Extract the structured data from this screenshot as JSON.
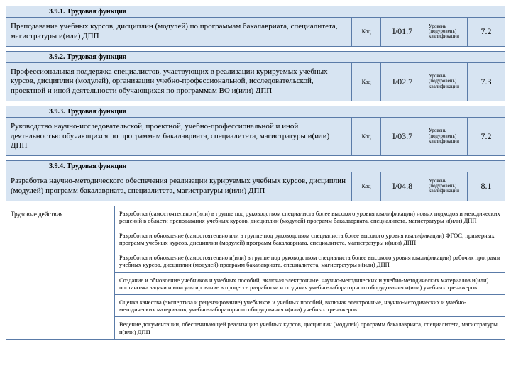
{
  "bg_header": "#d7e4f2",
  "border": "#5a7ba8",
  "kod_label": "Код",
  "level_label": "Уровень (подуровень) квалификации",
  "functions": [
    {
      "num": "3.9.1. Трудовая функция",
      "desc": "Преподавание учебных курсов, дисциплин (модулей) по программам бакалавриата, специалитета, магистратуры и(или) ДПП",
      "code": "I/01.7",
      "level": "7.2"
    },
    {
      "num": "3.9.2. Трудовая функция",
      "desc": "Профессиональная поддержка специалистов, участвующих в реализации курируемых учебных курсов, дисциплин (модулей), организации учебно-профессиональной, исследовательской, проектной и иной деятельности обучающихся по программам ВО и(или) ДПП",
      "code": "I/02.7",
      "level": "7.3"
    },
    {
      "num": "3.9.3. Трудовая функция",
      "desc": "Руководство научно-исследовательской, проектной, учебно-профессиональной и иной деятельностью обучающихся по программам бакалавриата, специалитета, магистратуры и(или) ДПП",
      "code": "I/03.7",
      "level": "7.2"
    },
    {
      "num": "3.9.4. Трудовая функция",
      "desc": "Разработка научно-методического обеспечения реализации курируемых учебных курсов, дисциплин (модулей) программ бакалавриата, специалитета, магистратуры и(или) ДПП",
      "code": "I/04.8",
      "level": "8.1"
    }
  ],
  "actions_label": "Трудовые действия",
  "actions": [
    "Разработка (самостоятельно и(или) в группе под руководством специалиста более высокого уровня квалификации) новых подходов и методических решений в области преподавания учебных курсов, дисциплин (модулей) программ бакалавриата, специалитета, магистратуры и(или) ДПП",
    "Разработка и обновление (самостоятельно или в группе под руководством специалиста более высокого уровня квалификации) ФГОС, примерных программ учебных курсов, дисциплин (модулей) программ бакалавриата, специалитета, магистратуры и(или) ДПП",
    "Разработка и обновление (самостоятельно и(или) в группе под руководством специалиста более высокого уровня квалификации) рабочих программ учебных курсов, дисциплин (модулей) программ бакалавриата, специалитета, магистратуры и(или) ДПП",
    "Создание и обновление учебников и учебных пособий, включая электронные, научно-методических и учебно-методических материалов и(или) постановка задачи и консультирование в процессе разработки и создания учебно-лабораторного оборудования и(или) учебных тренажеров",
    "Оценка качества (экспертиза и рецензирование) учебников и учебных пособий, включая электронные, научно-методических и учебно-методических материалов, учебно-лабораторного оборудования и(или) учебных тренажеров",
    "Ведение документации, обеспечивающей реализацию учебных курсов, дисциплин (модулей) программ бакалавриата, специалитета, магистратуры и(или) ДПП"
  ]
}
